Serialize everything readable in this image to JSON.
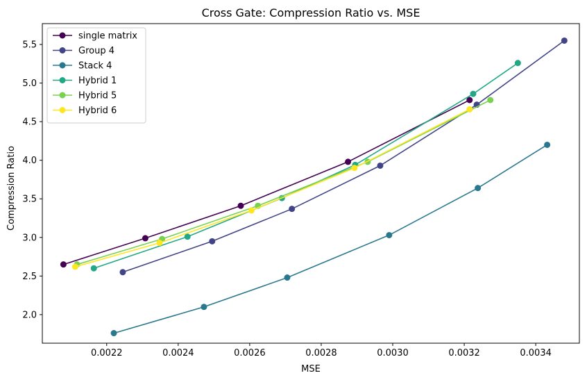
{
  "chart_data": {
    "type": "line",
    "title": "Cross Gate: Compression Ratio vs. MSE",
    "xlabel": "MSE",
    "ylabel": "Compression Ratio",
    "xlim": [
      0.00202,
      0.003522
    ],
    "ylim": [
      1.63,
      5.77
    ],
    "xticks": [
      0.0022,
      0.0024,
      0.0026,
      0.0028,
      0.003,
      0.0032,
      0.0034
    ],
    "xtick_labels": [
      "0.0022",
      "0.0024",
      "0.0026",
      "0.0028",
      "0.0030",
      "0.0032",
      "0.0034"
    ],
    "yticks": [
      2.0,
      2.5,
      3.0,
      3.5,
      4.0,
      4.5,
      5.0,
      5.5
    ],
    "ytick_labels": [
      "2.0",
      "2.5",
      "3.0",
      "3.5",
      "4.0",
      "4.5",
      "5.0",
      "5.5"
    ],
    "grid": false,
    "legend_position": "top-left",
    "series": [
      {
        "name": "single matrix",
        "color": "#440154",
        "x": [
          0.002079,
          0.002308,
          0.002575,
          0.002875,
          0.003215
        ],
        "y": [
          2.65,
          2.99,
          3.41,
          3.98,
          4.78
        ]
      },
      {
        "name": "Group 4",
        "color": "#414487",
        "x": [
          0.002245,
          0.002495,
          0.002718,
          0.002965,
          0.003235,
          0.00348
        ],
        "y": [
          2.55,
          2.95,
          3.37,
          3.93,
          4.72,
          5.55
        ]
      },
      {
        "name": "Stack 4",
        "color": "#2a788e",
        "x": [
          0.00222,
          0.002472,
          0.002705,
          0.00299,
          0.003238,
          0.003432
        ],
        "y": [
          1.76,
          2.1,
          2.48,
          3.03,
          3.64,
          4.2
        ]
      },
      {
        "name": "Hybrid 1",
        "color": "#22a884",
        "x": [
          0.002164,
          0.002426,
          0.00269,
          0.002895,
          0.003225,
          0.00335
        ],
        "y": [
          2.6,
          3.01,
          3.51,
          3.94,
          4.86,
          5.26
        ]
      },
      {
        "name": "Hybrid 5",
        "color": "#7ad151",
        "x": [
          0.002117,
          0.002355,
          0.002623,
          0.00293,
          0.003273
        ],
        "y": [
          2.65,
          2.98,
          3.41,
          3.98,
          4.78
        ]
      },
      {
        "name": "Hybrid 6",
        "color": "#fde725",
        "x": [
          0.002112,
          0.002348,
          0.002605,
          0.002893,
          0.003215
        ],
        "y": [
          2.62,
          2.93,
          3.35,
          3.9,
          4.66
        ]
      }
    ]
  }
}
